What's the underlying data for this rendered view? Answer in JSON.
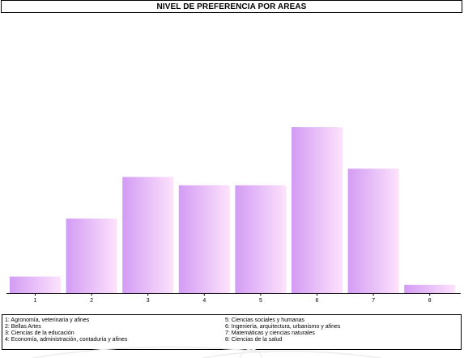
{
  "title": "NIVEL DE PREFERENCIA POR AREAS",
  "chart_data": {
    "type": "bar",
    "title": "NIVEL DE PREFERENCIA POR AREAS",
    "xlabel": "",
    "ylabel": "",
    "categories": [
      "1",
      "2",
      "3",
      "4",
      "5",
      "6",
      "7",
      "8"
    ],
    "values": [
      2,
      9,
      14,
      13,
      13,
      20,
      15,
      1
    ],
    "ylim": [
      0,
      20
    ],
    "grid": false,
    "bar_gradient": [
      "#d39cf4",
      "#fde2fc"
    ]
  },
  "legend": {
    "left": [
      "1: Agronomía, veterinaria y afines",
      "2: Bellas Artes",
      "3: Ciencias de la educación",
      "4: Economía, administración, contaduría y afines"
    ],
    "right": [
      "5: Ciencias sociales y humanas",
      "6: Ingeniería, arquitectura, urbanismo y afines",
      "7: Matemáticas y ciencias naturales",
      "8: Ciencias de la salud"
    ]
  }
}
